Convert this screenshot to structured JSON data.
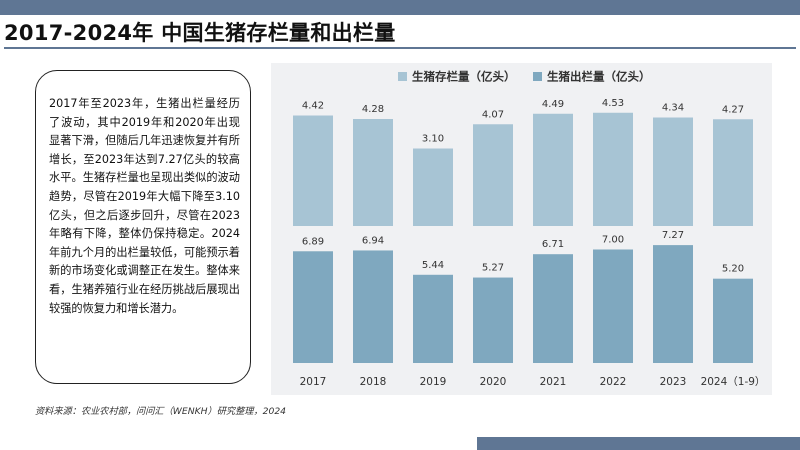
{
  "title": "2017-2024年 中国生猪存栏量和出栏量",
  "summary": "2017年至2023年，生猪出栏量经历了波动，其中2019年和2020年出现显著下滑，但随后几年迅速恢复并有所增长，至2023年达到7.27亿头的较高水平。生猪存栏量也呈现出类似的波动趋势，尽管在2019年大幅下降至3.10亿头，但之后逐步回升，尽管在2023年略有下降，整体仍保持稳定。2024年前九个月的出栏量较低，可能预示着新的市场变化或调整正在发生。整体来看，生猪养殖行业在经历挑战后展现出较强的恢复力和增长潜力。",
  "source": "资料来源：农业农村部，问问汇（WENKH）研究整理，2024",
  "colors": {
    "accent": "#5f7694",
    "inventory": "#a7c4d4",
    "slaughter": "#7fa8bf",
    "panel": "#f0f1f3"
  },
  "chart_data": {
    "type": "bar",
    "categories": [
      "2017",
      "2018",
      "2019",
      "2020",
      "2021",
      "2022",
      "2023",
      "2024（1-9）"
    ],
    "series": [
      {
        "name": "生猪存栏量（亿头）",
        "values": [
          4.42,
          4.28,
          3.1,
          4.07,
          4.49,
          4.53,
          4.34,
          4.27
        ]
      },
      {
        "name": "生猪出栏量（亿头）",
        "values": [
          6.89,
          6.94,
          5.44,
          5.27,
          6.71,
          7.0,
          7.27,
          5.2
        ]
      }
    ],
    "legend_position": "top",
    "grid": false,
    "layout": "two stacked bar panels sharing the x axis"
  }
}
